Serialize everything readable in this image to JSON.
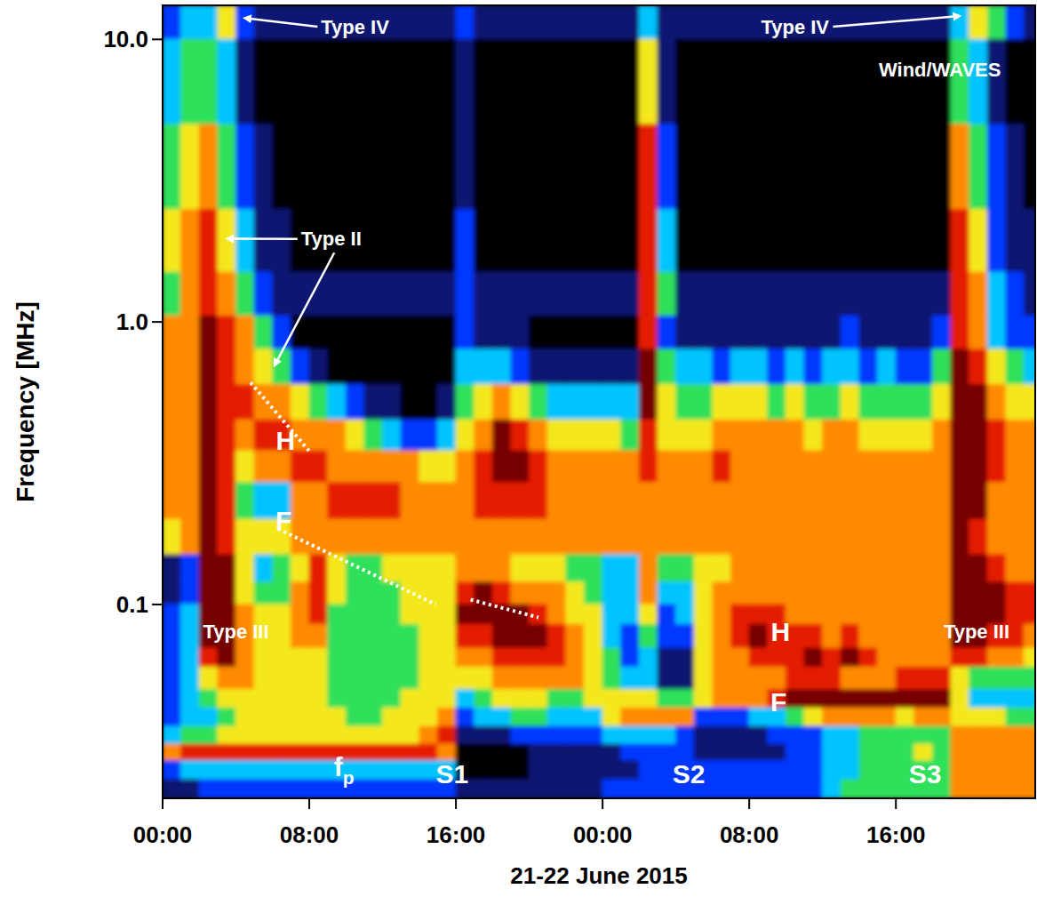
{
  "chart_data": {
    "type": "heatmap",
    "x_label": "21-22 June 2015",
    "y_label": "Frequency [MHz]",
    "log": "y",
    "xlim": [
      0,
      47.6
    ],
    "ylim": [
      0.0206,
      13.2
    ],
    "xticks": [
      {
        "value": 0,
        "label": "00:00"
      },
      {
        "value": 8,
        "label": "08:00"
      },
      {
        "value": 16,
        "label": "16:00"
      },
      {
        "value": 24,
        "label": "00:00"
      },
      {
        "value": 32,
        "label": "08:00"
      },
      {
        "value": 40,
        "label": "16:00"
      }
    ],
    "yticks": [
      0.1,
      {
        "value": 1,
        "label": "1.0"
      },
      {
        "value": 10,
        "label": "10.0"
      }
    ],
    "x_edges": [
      0,
      1,
      2,
      3,
      4,
      5,
      6,
      7,
      8,
      9,
      10,
      11,
      12,
      13,
      14,
      15,
      16,
      17,
      18,
      19,
      20,
      21,
      22,
      23,
      24,
      25,
      26,
      27,
      28,
      29,
      30,
      31,
      32,
      33,
      34,
      35,
      36,
      37,
      38,
      39,
      40,
      41,
      42,
      43,
      44,
      45,
      46,
      47,
      48
    ],
    "y_edges": [
      13.2,
      10,
      5,
      2.5,
      1.5,
      1.05,
      0.8,
      0.6,
      0.45,
      0.35,
      0.27,
      0.2,
      0.15,
      0.12,
      0.1,
      0.085,
      0.07,
      0.06,
      0.05,
      0.043,
      0.037,
      0.032,
      0.028,
      0.024,
      0.0206
    ],
    "zlim": [
      0,
      8
    ],
    "cells": [
      [
        2,
        3,
        4,
        5,
        4,
        6,
        6,
        6,
        6,
        6,
        6,
        5,
        1,
        1,
        2,
        2,
        2,
        2,
        2,
        2,
        3,
        6,
        2,
        1
      ],
      [
        3,
        4,
        5,
        6,
        6,
        6,
        6,
        6,
        6,
        6,
        6,
        6,
        2,
        2,
        3,
        3,
        3,
        3,
        3,
        3,
        4,
        7,
        3,
        1
      ],
      [
        3,
        4,
        6,
        7,
        7,
        8,
        8,
        8,
        8,
        8,
        8,
        8,
        8,
        8,
        8,
        8,
        7,
        5,
        4,
        3,
        4,
        7,
        3,
        2
      ],
      [
        5,
        3,
        4,
        5,
        6,
        7,
        7,
        7,
        7,
        7,
        7,
        7,
        8,
        8,
        8,
        8,
        8,
        6,
        5,
        4,
        5,
        7,
        3,
        2
      ],
      [
        2,
        1,
        2,
        3,
        4,
        6,
        6,
        7,
        6,
        5,
        4,
        5,
        5,
        5,
        6,
        6,
        6,
        6,
        5,
        5,
        5,
        7,
        3,
        2
      ],
      [
        1,
        0,
        1,
        1,
        2,
        4,
        5,
        6,
        7,
        6,
        3,
        5,
        3,
        4,
        5,
        5,
        5,
        5,
        5,
        5,
        5,
        7,
        3,
        2
      ],
      [
        1,
        0,
        0,
        1,
        1,
        2,
        4,
        6,
        7,
        6,
        3,
        5,
        4,
        4,
        5,
        5,
        5,
        5,
        5,
        5,
        5,
        7,
        3,
        2
      ],
      [
        1,
        0,
        0,
        0,
        1,
        0,
        2,
        5,
        6,
        7,
        6,
        6,
        5,
        6,
        6,
        6,
        5,
        5,
        5,
        5,
        5,
        7,
        3,
        2
      ],
      [
        1,
        0,
        0,
        0,
        1,
        0,
        1,
        4,
        6,
        7,
        6,
        6,
        7,
        7,
        7,
        6,
        5,
        5,
        5,
        5,
        5,
        7,
        3,
        2
      ],
      [
        1,
        0,
        0,
        0,
        1,
        0,
        0,
        3,
        6,
        6,
        7,
        6,
        5,
        5,
        4,
        4,
        4,
        4,
        4,
        5,
        5,
        7,
        3,
        2
      ],
      [
        1,
        0,
        0,
        0,
        1,
        0,
        0,
        2,
        5,
        6,
        7,
        6,
        4,
        4,
        4,
        4,
        4,
        4,
        4,
        4,
        5,
        7,
        3,
        2
      ],
      [
        1,
        0,
        0,
        0,
        1,
        0,
        0,
        1,
        4,
        6,
        7,
        6,
        4,
        4,
        4,
        4,
        4,
        4,
        4,
        4,
        5,
        7,
        3,
        2
      ],
      [
        1,
        0,
        0,
        0,
        1,
        0,
        0,
        1,
        3,
        6,
        7,
        6,
        5,
        4,
        4,
        4,
        4,
        4,
        4,
        5,
        5,
        7,
        3,
        2
      ],
      [
        1,
        0,
        0,
        0,
        1,
        0,
        0,
        0,
        2,
        6,
        6,
        6,
        5,
        5,
        5,
        4,
        4,
        4,
        5,
        5,
        5,
        7,
        3,
        2
      ],
      [
        1,
        0,
        0,
        0,
        1,
        0,
        0,
        0,
        2,
        5,
        6,
        6,
        5,
        5,
        5,
        5,
        5,
        5,
        5,
        5,
        6,
        7,
        3,
        2
      ],
      [
        1,
        0,
        0,
        0,
        1,
        0,
        0,
        1,
        3,
        5,
        6,
        6,
        5,
        5,
        5,
        5,
        5,
        5,
        5,
        6,
        7,
        6,
        3,
        2
      ],
      [
        2,
        1,
        1,
        2,
        2,
        2,
        3,
        4,
        5,
        6,
        6,
        6,
        6,
        7,
        8,
        7,
        6,
        5,
        3,
        2,
        1,
        0,
        0,
        1
      ],
      [
        1,
        0,
        0,
        0,
        1,
        1,
        3,
        5,
        6,
        7,
        7,
        6,
        6,
        8,
        8,
        7,
        6,
        5,
        4,
        3,
        1,
        0,
        0,
        1
      ],
      [
        1,
        0,
        0,
        0,
        1,
        1,
        3,
        6,
        8,
        8,
        7,
        6,
        6,
        7,
        8,
        8,
        7,
        6,
        5,
        3,
        1,
        0,
        0,
        1
      ],
      [
        1,
        0,
        0,
        0,
        1,
        1,
        2,
        5,
        7,
        8,
        7,
        6,
        5,
        6,
        8,
        8,
        7,
        6,
        5,
        4,
        2,
        0,
        0,
        1
      ],
      [
        1,
        0,
        0,
        0,
        1,
        0,
        1,
        4,
        6,
        7,
        7,
        6,
        5,
        6,
        7,
        8,
        7,
        6,
        5,
        4,
        2,
        1,
        1,
        1
      ],
      [
        1,
        0,
        0,
        0,
        1,
        0,
        1,
        3,
        5,
        6,
        6,
        6,
        5,
        6,
        6,
        7,
        7,
        6,
        4,
        3,
        2,
        1,
        1,
        1
      ],
      [
        1,
        0,
        0,
        0,
        1,
        0,
        1,
        3,
        5,
        6,
        6,
        6,
        4,
        5,
        5,
        6,
        6,
        6,
        4,
        3,
        2,
        1,
        1,
        1
      ],
      [
        1,
        0,
        0,
        0,
        1,
        0,
        1,
        3,
        5,
        6,
        6,
        6,
        4,
        4,
        5,
        5,
        5,
        5,
        5,
        3,
        2,
        1,
        1,
        1
      ],
      [
        1,
        0,
        0,
        0,
        1,
        0,
        1,
        3,
        5,
        6,
        6,
        6,
        3,
        3,
        3,
        3,
        4,
        4,
        5,
        5,
        3,
        1,
        1,
        2
      ],
      [
        1,
        0,
        0,
        0,
        1,
        0,
        1,
        3,
        4,
        6,
        6,
        6,
        3,
        3,
        3,
        2,
        2,
        3,
        5,
        6,
        3,
        2,
        1,
        2
      ],
      [
        3,
        5,
        7,
        7,
        7,
        7,
        8,
        8,
        7,
        7,
        6,
        6,
        6,
        6,
        5,
        4,
        3,
        3,
        5,
        6,
        3,
        2,
        2,
        2
      ],
      [
        1,
        1,
        2,
        3,
        4,
        2,
        4,
        5,
        5,
        6,
        6,
        6,
        4,
        3,
        2,
        2,
        1,
        1,
        4,
        6,
        3,
        2,
        2,
        2
      ],
      [
        1,
        0,
        0,
        0,
        1,
        1,
        3,
        4,
        5,
        6,
        6,
        6,
        4,
        3,
        3,
        2,
        1,
        1,
        4,
        6,
        2,
        2,
        2,
        2
      ],
      [
        1,
        0,
        0,
        0,
        1,
        1,
        3,
        4,
        5,
        6,
        6,
        6,
        5,
        5,
        5,
        5,
        5,
        5,
        5,
        2,
        1,
        1,
        2,
        2
      ],
      [
        1,
        0,
        0,
        0,
        1,
        1,
        2,
        5,
        6,
        7,
        6,
        6,
        5,
        6,
        6,
        6,
        6,
        6,
        6,
        2,
        1,
        1,
        2,
        2
      ],
      [
        1,
        0,
        0,
        0,
        1,
        1,
        3,
        5,
        6,
        6,
        6,
        6,
        6,
        6,
        7,
        7,
        6,
        6,
        6,
        2,
        1,
        1,
        2,
        2
      ],
      [
        1,
        0,
        0,
        0,
        1,
        1,
        3,
        5,
        6,
        6,
        6,
        6,
        6,
        6,
        7,
        8,
        7,
        6,
        6,
        3,
        1,
        1,
        2,
        2
      ],
      [
        1,
        0,
        0,
        0,
        1,
        1,
        2,
        4,
        6,
        6,
        6,
        6,
        6,
        6,
        7,
        7,
        7,
        6,
        7,
        3,
        2,
        1,
        2,
        2
      ],
      [
        1,
        0,
        0,
        0,
        1,
        1,
        3,
        5,
        6,
        6,
        6,
        6,
        6,
        6,
        6,
        7,
        7,
        7,
        8,
        4,
        2,
        2,
        2,
        2
      ],
      [
        1,
        0,
        0,
        0,
        1,
        1,
        2,
        4,
        5,
        6,
        6,
        6,
        6,
        6,
        6,
        7,
        8,
        7,
        8,
        5,
        2,
        2,
        2,
        2
      ],
      [
        1,
        0,
        0,
        0,
        1,
        1,
        3,
        4,
        6,
        6,
        6,
        6,
        6,
        6,
        6,
        6,
        7,
        7,
        8,
        6,
        3,
        3,
        3,
        3
      ],
      [
        1,
        0,
        0,
        0,
        1,
        2,
        3,
        5,
        6,
        6,
        6,
        6,
        6,
        6,
        6,
        7,
        8,
        6,
        8,
        6,
        3,
        3,
        3,
        4
      ],
      [
        1,
        0,
        0,
        0,
        1,
        1,
        2,
        4,
        5,
        6,
        6,
        6,
        6,
        6,
        6,
        6,
        7,
        6,
        8,
        6,
        4,
        4,
        4,
        4
      ],
      [
        1,
        0,
        0,
        0,
        1,
        1,
        3,
        4,
        5,
        6,
        6,
        6,
        6,
        6,
        6,
        6,
        6,
        6,
        8,
        6,
        4,
        4,
        4,
        4
      ],
      [
        1,
        0,
        0,
        0,
        1,
        1,
        2,
        4,
        5,
        6,
        6,
        6,
        6,
        6,
        6,
        6,
        6,
        7,
        8,
        5,
        4,
        4,
        4,
        4
      ],
      [
        1,
        0,
        0,
        0,
        1,
        1,
        2,
        4,
        5,
        6,
        6,
        6,
        6,
        6,
        6,
        6,
        6,
        7,
        8,
        6,
        4,
        5,
        4,
        4
      ],
      [
        1,
        0,
        0,
        0,
        1,
        2,
        4,
        5,
        6,
        6,
        6,
        6,
        6,
        6,
        6,
        6,
        6,
        7,
        8,
        6,
        4,
        4,
        4,
        4
      ],
      [
        3,
        4,
        6,
        7,
        7,
        7,
        8,
        8,
        8,
        8,
        8,
        8,
        8,
        8,
        8,
        8,
        7,
        5,
        5,
        5,
        6,
        6,
        6,
        6
      ],
      [
        5,
        3,
        4,
        5,
        6,
        6,
        7,
        8,
        8,
        8,
        8,
        7,
        8,
        8,
        8,
        8,
        7,
        4,
        3,
        5,
        6,
        6,
        6,
        6
      ],
      [
        4,
        1,
        2,
        2,
        3,
        3,
        5,
        6,
        7,
        7,
        6,
        6,
        7,
        8,
        8,
        7,
        6,
        4,
        3,
        5,
        6,
        6,
        6,
        6
      ],
      [
        2,
        0,
        1,
        1,
        2,
        2,
        4,
        5,
        6,
        6,
        6,
        6,
        6,
        7,
        7,
        7,
        6,
        4,
        3,
        4,
        6,
        6,
        6,
        6
      ],
      [
        1,
        0,
        0,
        1,
        1,
        2,
        3,
        5,
        6,
        6,
        6,
        6,
        6,
        7,
        7,
        6,
        5,
        4,
        3,
        4,
        6,
        6,
        6,
        6
      ]
    ],
    "series": [
      {
        "type": "line",
        "line_style": "dotted",
        "color": "#ffffff",
        "x": [
          4.8,
          8.1
        ],
        "values": [
          0.61,
          0.343
        ]
      },
      {
        "type": "line",
        "line_style": "dotted",
        "color": "#ffffff",
        "x": [
          6.3,
          14.9
        ],
        "values": [
          0.185,
          0.1
        ]
      },
      {
        "type": "line",
        "line_style": "dotted",
        "color": "#ffffff",
        "x": [
          16.8,
          20.5
        ],
        "values": [
          0.104,
          0.09
        ]
      }
    ],
    "annotations": [
      {
        "text": "Type IV",
        "x": 10.5,
        "y": 11.1,
        "arrow_to": [
          [
            4.46,
            11.9
          ]
        ]
      },
      {
        "text": "Type IV",
        "x": 34.5,
        "y": 11.1,
        "arrow_to": [
          [
            43.5,
            12.1
          ]
        ]
      },
      {
        "text": "Wind/WAVES",
        "x": 42.4,
        "y": 7.8
      },
      {
        "text": "Type II",
        "x": 9.2,
        "y": 1.97,
        "arrow_to": [
          [
            3.5,
            1.97
          ],
          [
            6.1,
            0.7
          ]
        ]
      },
      {
        "text": "H",
        "x": 6.7,
        "y": 0.38
      },
      {
        "text": "F",
        "x": 6.6,
        "y": 0.198
      },
      {
        "text": "Type III",
        "x": 4.0,
        "y": 0.08
      },
      {
        "text": "f",
        "subscript": "p",
        "x": 9.9,
        "y": 0.0266
      },
      {
        "text": "S1",
        "x": 15.8,
        "y": 0.0252
      },
      {
        "text": "S2",
        "x": 28.7,
        "y": 0.0252
      },
      {
        "text": "S3",
        "x": 41.6,
        "y": 0.0252
      },
      {
        "text": "H",
        "x": 33.7,
        "y": 0.08
      },
      {
        "text": "F",
        "x": 33.6,
        "y": 0.0452
      },
      {
        "text": "Type III",
        "x": 44.4,
        "y": 0.08
      }
    ]
  }
}
